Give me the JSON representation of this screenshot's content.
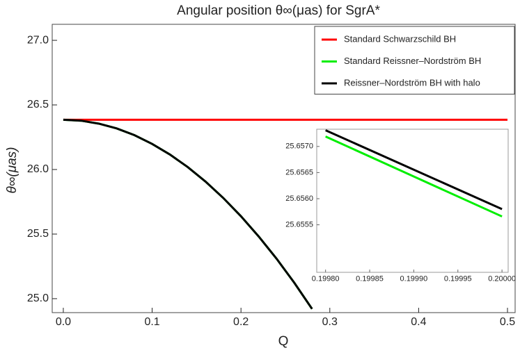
{
  "chart_data": [
    {
      "type": "line",
      "title": "Angular position θ∞(μas) for SgrA*",
      "x_label": "Q",
      "y_label": "θ∞(μas)",
      "xlim": [
        -0.0125,
        0.5086
      ],
      "ylim": [
        24.892,
        27.124
      ],
      "xticks": [
        {
          "value": 0,
          "label": "0.0"
        },
        0.1,
        0.2,
        0.3,
        0.4,
        0.5
      ],
      "yticks": [
        {
          "value": 25,
          "label": "25.0"
        },
        25.5,
        {
          "value": 26,
          "label": "26.0"
        },
        26.5,
        {
          "value": 27,
          "label": "27.0"
        }
      ],
      "grid": false,
      "legend": "upper right",
      "series": [
        {
          "name": "Standard Schwarzschild BH",
          "color": "#ff0000",
          "x": [
            0,
            0.5
          ],
          "values": [
            26.385,
            26.385
          ]
        },
        {
          "name": "Standard Reissner–Nordström BH",
          "color": "#00ee00",
          "x": [
            0,
            0.02,
            0.04,
            0.06,
            0.08,
            0.1,
            0.12,
            0.14,
            0.16,
            0.18,
            0.2,
            0.22,
            0.24,
            0.26,
            0.28
          ],
          "values": [
            26.385,
            26.378,
            26.355,
            26.318,
            26.266,
            26.198,
            26.116,
            26.019,
            25.907,
            25.78,
            25.638,
            25.481,
            25.31,
            25.123,
            24.921
          ]
        },
        {
          "name": "Reissner–Nordström BH with halo",
          "color": "#000000",
          "x": [
            0,
            0.02,
            0.04,
            0.06,
            0.08,
            0.1,
            0.12,
            0.14,
            0.16,
            0.18,
            0.2,
            0.22,
            0.24,
            0.26,
            0.28
          ],
          "values": [
            26.385,
            26.378,
            26.355,
            26.318,
            26.266,
            26.198,
            26.116,
            26.019,
            25.907,
            25.78,
            25.638,
            25.481,
            25.31,
            25.123,
            24.921
          ]
        }
      ]
    },
    {
      "type": "line",
      "xlim": [
        0.19979,
        0.200007
      ],
      "ylim": [
        25.65459,
        25.65733
      ],
      "xticks": [
        {
          "value": 0.1998,
          "label": "0.19980"
        },
        0.19985,
        {
          "value": 0.1999,
          "label": "0.19990"
        },
        0.19995,
        {
          "value": 0.2,
          "label": "0.20000"
        }
      ],
      "yticks": [
        25.6555,
        {
          "value": 25.656,
          "label": "25.6560"
        },
        25.6565,
        {
          "value": 25.657,
          "label": "25.6570"
        }
      ],
      "grid": false,
      "series": [
        {
          "color": "#00ee00",
          "x": [
            0.1998,
            0.2
          ],
          "values": [
            25.65719,
            25.65566
          ]
        },
        {
          "color": "#000000",
          "x": [
            0.1998,
            0.2
          ],
          "values": [
            25.65731,
            25.6558
          ]
        }
      ]
    }
  ]
}
